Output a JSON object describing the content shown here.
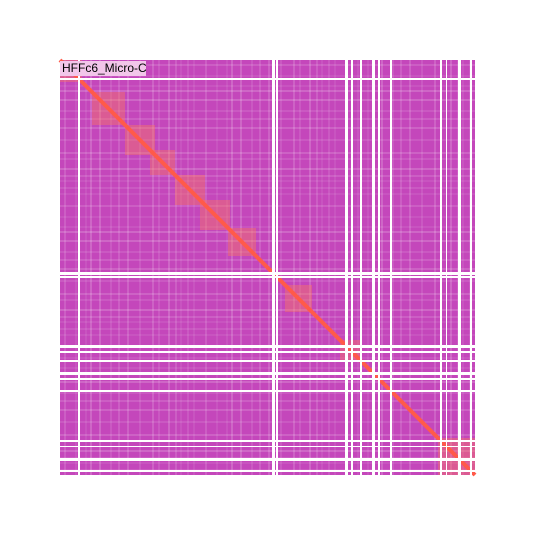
{
  "track": {
    "label": "HFFc6_Micro-C"
  }
}
